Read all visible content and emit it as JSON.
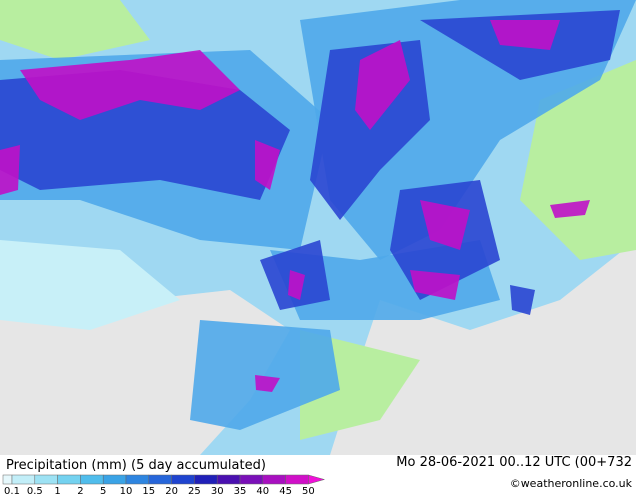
{
  "footer": {
    "title": "Precipitation (mm) (5 day accumulated)",
    "valid_time": "Mo 28-06-2021 00..12 UTC (00+732",
    "credit": "©weatheronline.co.uk"
  },
  "legend": {
    "labels": [
      0.1,
      0.5,
      1,
      2,
      5,
      10,
      15,
      20,
      25,
      30,
      35,
      40,
      45,
      50
    ],
    "colors": [
      "#e6f8fc",
      "#c2eef8",
      "#9de2f4",
      "#74d2f0",
      "#50bdec",
      "#3aa3e6",
      "#2e85e0",
      "#2766da",
      "#1f44cf",
      "#2020b8",
      "#4a10b0",
      "#7a10b8",
      "#a810c0",
      "#d010c8",
      "#f010d8"
    ]
  }
}
